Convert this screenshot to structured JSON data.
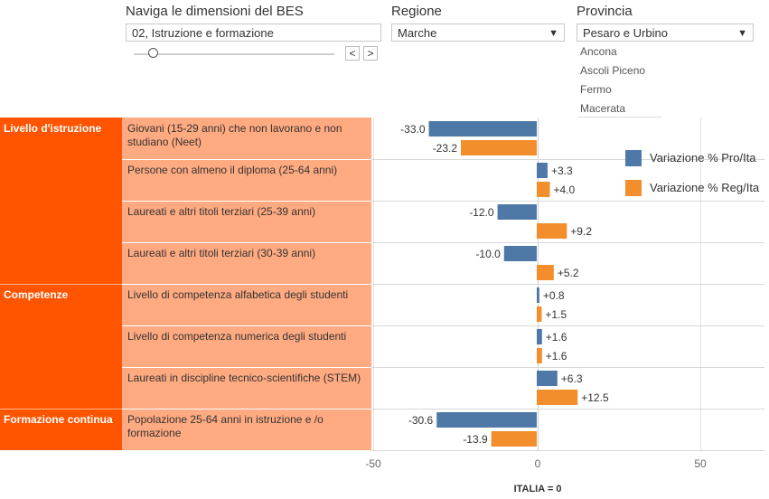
{
  "controls": {
    "dimension": {
      "title": "Naviga le dimensioni del BES",
      "value": "02, Istruzione e formazione",
      "prev_label": "<",
      "next_label": ">"
    },
    "region": {
      "title": "Regione",
      "value": "Marche"
    },
    "province": {
      "title": "Provincia",
      "value": "Pesaro e Urbino",
      "visible_options": [
        "Ancona",
        "Ascoli Piceno",
        "Fermo",
        "Macerata"
      ]
    },
    "arrow_glyph": "▼"
  },
  "colors": {
    "pro": "#4e79a7",
    "reg": "#f28e2b",
    "category_bg": "#ff5500",
    "indicator_bg": "#ffaa80"
  },
  "chart_data": {
    "type": "bar",
    "orientation": "horizontal",
    "xlim": [
      -50,
      50
    ],
    "x_ticks": [
      -50,
      0,
      50
    ],
    "x_tick_labels": [
      "-50",
      "0",
      "50"
    ],
    "xlabel": "ITALIA = 0",
    "legend_position": "right",
    "series": [
      {
        "name": "Variazione % Pro/Ita",
        "color": "#4e79a7",
        "values": [
          -33.0,
          3.3,
          -12.0,
          -10.0,
          0.8,
          1.6,
          6.3,
          -30.6
        ]
      },
      {
        "name": "Variazione % Reg/Ita",
        "color": "#f28e2b",
        "values": [
          -23.2,
          4.0,
          9.2,
          5.2,
          1.5,
          1.6,
          12.5,
          -13.9
        ]
      }
    ],
    "data_labels": [
      [
        "-33.0",
        "-23.2"
      ],
      [
        "+3.3",
        "+4.0"
      ],
      [
        "-12.0",
        "+9.2"
      ],
      [
        "-10.0",
        "+5.2"
      ],
      [
        "+0.8",
        "+1.5"
      ],
      [
        "+1.6",
        "+1.6"
      ],
      [
        "+6.3",
        "+12.5"
      ],
      [
        "-30.6",
        "-13.9"
      ]
    ],
    "groups": [
      {
        "name": "Livello d'istruzione",
        "indicators": [
          0,
          1,
          2,
          3
        ]
      },
      {
        "name": "Competenze",
        "indicators": [
          4,
          5,
          6
        ]
      },
      {
        "name": "Formazione continua",
        "indicators": [
          7
        ]
      }
    ],
    "categories": [
      "Giovani (15-29 anni) che non lavorano e non studiano (Neet)",
      "Persone con almeno il diploma (25-64 anni)",
      "Laureati e altri titoli terziari (25-39 anni)",
      "Laureati e altri titoli terziari (30-39 anni)",
      "Livello di competenza alfabetica degli studenti",
      "Livello di competenza numerica degli studenti",
      "Laureati in discipline tecnico-scientifiche (STEM)",
      "Popolazione 25-64 anni in istruzione e /o formazione"
    ]
  }
}
